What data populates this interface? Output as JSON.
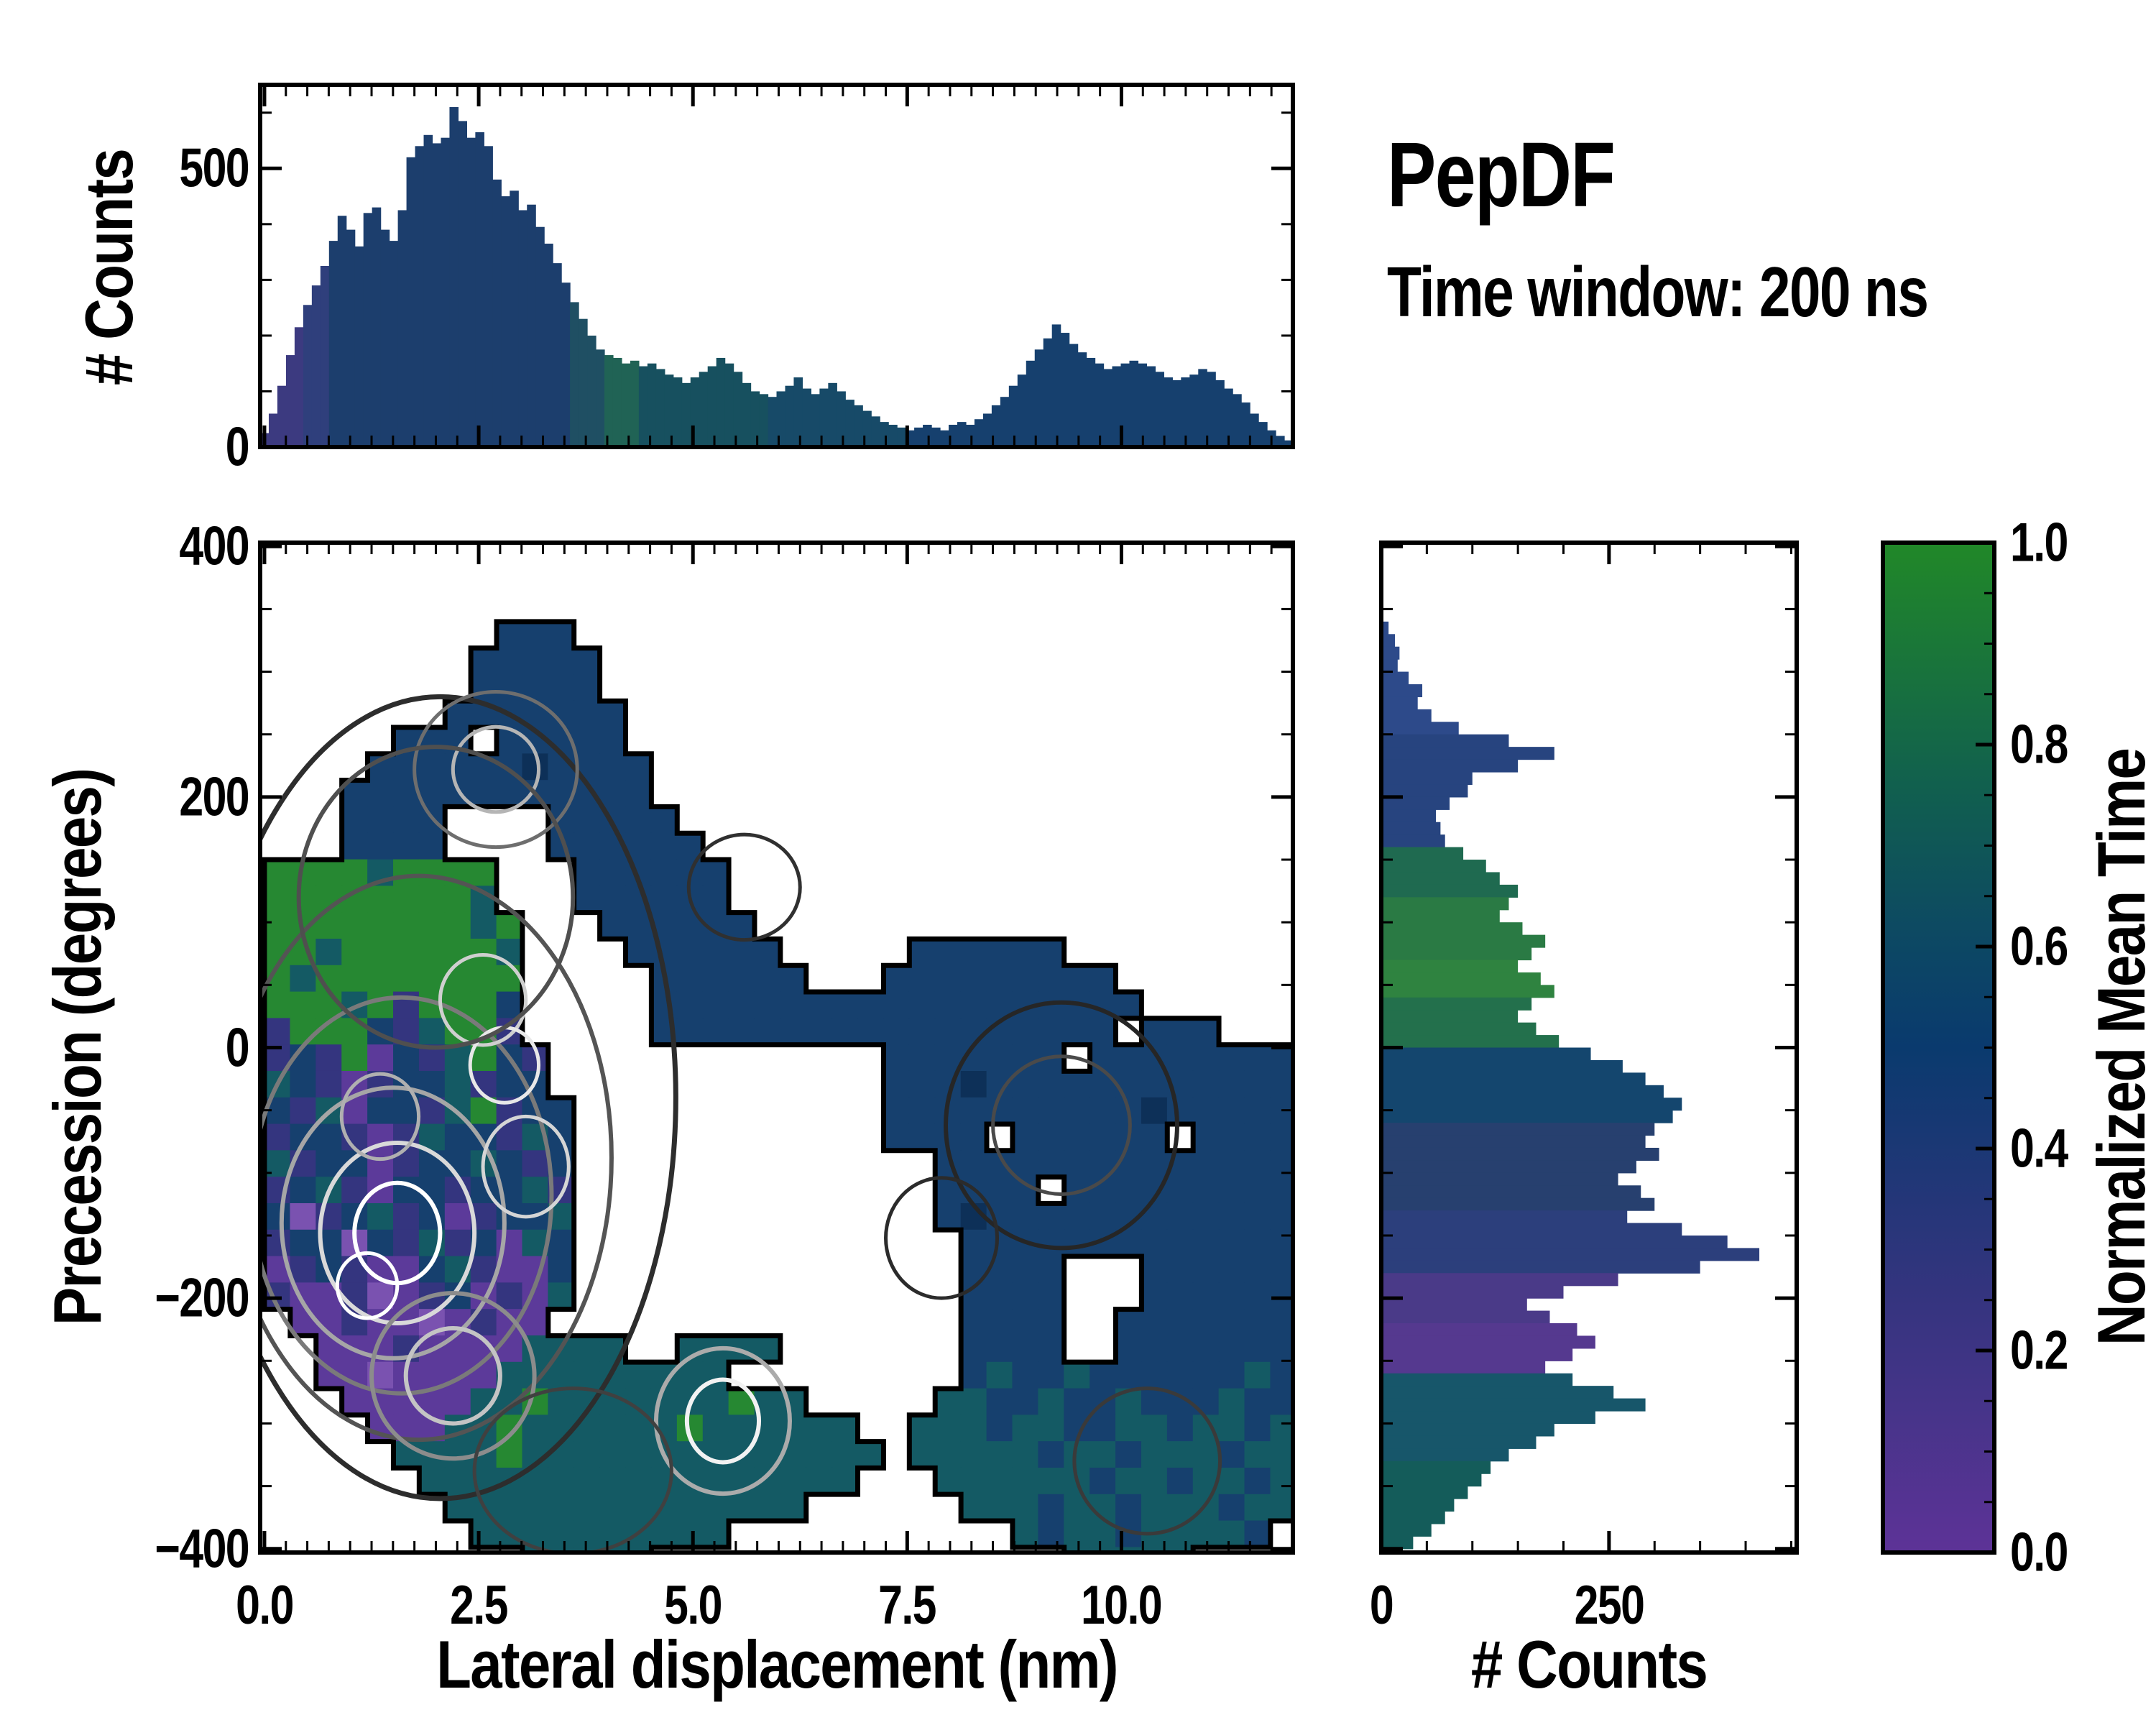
{
  "title": "PepDF",
  "subtitle": "Time window: 200 ns",
  "chart_data": [
    {
      "type": "bar",
      "name": "top_histogram",
      "ylabel": "# Counts",
      "x_start": 0,
      "bin_width": 0.1,
      "xlim": [
        0,
        12
      ],
      "ylim": [
        0,
        650
      ],
      "yticks": [
        0,
        500
      ],
      "ytick_labels": [
        "0",
        "500"
      ],
      "minor_yticks": [
        100,
        200,
        300,
        400,
        600
      ],
      "minor_xstep": 0.25,
      "values": [
        25,
        60,
        110,
        165,
        215,
        255,
        290,
        325,
        370,
        415,
        390,
        360,
        420,
        430,
        390,
        370,
        425,
        520,
        540,
        560,
        545,
        555,
        610,
        585,
        555,
        565,
        540,
        480,
        450,
        460,
        425,
        435,
        395,
        365,
        330,
        295,
        260,
        230,
        200,
        175,
        165,
        160,
        150,
        155,
        145,
        150,
        140,
        130,
        125,
        115,
        125,
        135,
        145,
        160,
        150,
        135,
        115,
        100,
        95,
        90,
        100,
        110,
        125,
        105,
        95,
        105,
        115,
        100,
        85,
        75,
        65,
        55,
        45,
        40,
        35,
        30,
        35,
        40,
        35,
        30,
        40,
        45,
        40,
        50,
        60,
        75,
        90,
        110,
        130,
        155,
        175,
        195,
        220,
        205,
        185,
        170,
        160,
        150,
        140,
        145,
        150,
        155,
        150,
        145,
        135,
        125,
        120,
        125,
        130,
        140,
        135,
        120,
        105,
        95,
        80,
        60,
        45,
        30,
        20,
        12
      ],
      "color_stops": [
        {
          "to": 0.45,
          "color": "#3c3a80"
        },
        {
          "to": 0.85,
          "color": "#2f3f7c"
        },
        {
          "to": 3.6,
          "color": "#1c3e6d"
        },
        {
          "to": 3.95,
          "color": "#1f4f63"
        },
        {
          "to": 4.4,
          "color": "#206355"
        },
        {
          "to": 5.9,
          "color": "#17505f"
        },
        {
          "to": 7.5,
          "color": "#174a68"
        },
        {
          "to": 12.1,
          "color": "#16406e"
        }
      ]
    },
    {
      "type": "heatmap",
      "name": "main_density_map",
      "xlabel": "Lateral displacement (nm)",
      "ylabel": "Precession (degrees)",
      "xlim": [
        0,
        12
      ],
      "ylim": [
        -403,
        403
      ],
      "xticks": [
        0,
        2.5,
        5,
        7.5,
        10
      ],
      "xtick_labels": [
        "0.0",
        "2.5",
        "5.0",
        "7.5",
        "10.0"
      ],
      "yticks": [
        400,
        200,
        0,
        -200,
        -400
      ],
      "ytick_labels": [
        "400",
        "200",
        "0",
        "−200",
        "−400"
      ],
      "minor_xstep": 0.25,
      "minor_ystep": 50,
      "grid": {
        "x0": 0,
        "y0": 340,
        "dx": 0.301,
        "dy": 21.11,
        "rows": [
          ".........bbb............................",
          "........bbbbb...........................",
          "........bbbbb...........................",
          ".......bbbbbbb..........................",
          ".....bbb.bbbbb..........................",
          "....bbbbbbdbbbb.........................",
          "...bbbbbbbbbbbb.........................",
          "...bbbb....bbbbb........................",
          "...bbbb....bbbbbb.......................",
          "ggggtgggg...bbbbbb......................",
          "ggggggggt...bbbbbb......................",
          "ggggggggtg...bbbbbb.....................",
          "ggtggggggt....bbbbbb.....bbbbbb.........",
          "gtgggggggg.....bbbbbb...bbbbbbbbb.......",
          "gggtgigggb.....bbbbbbbbbbbbbbbbbbb......",
          "igggbitggi.....bbbbbbbbbbbbbbbbbb.bbb...",
          "ibigpbitgbi.............bbbbbbb.bbbbbbbb",
          "tbipibbtibb.............bbbdbbbbbbbbbbbb",
          "bitpbbitgibb............bbbbbbbbbbdbbbbb",
          "ibbipitbbitb............bbbb.bbbbbb.bbbb",
          "tibbpibbtbib..............bbbbbbbbbbbbbb",
          "ibtipbbibbti..............bbbb.bbbbbbbbb",
          "bPibtibpibbt..............bdbbbbbbbbbbbb",
          "ibbPbitibptb...............bbbbbbbbbbbbb",
          "pibippbtippb...............bbbb...bbbbbb",
          "ippiPpibpipt...............bbbb...bbbbbb",
          ".ppippPpipp................bbbb..bbbbbbb",
          "..pppipppptttt..tttt.......bbbb..bbbbbbb",
          "..ppPppppttttttttt.........btbbtbbbbbbtb",
          "...pppppttgtttttttgtt.....ttbbtbbtbbbtbb",
          "....pppttgttttttgtttttt..tttbttbbttbttbt",
          ".....ttttgtttttttttttttt.tttttbttbtttbtt",
          "......ttttttttttttttttt...ttttttbttbttbt",
          ".......tttttttttttttt......tttbttbtttbtt",
          "........tttttttttt...........tbttbttttb.",
          "..........ttttt................ttttt...."
        ]
      },
      "palette": {
        "b": "#16406e",
        "B": "#1d4a7a",
        "d": "#0d3058",
        "t": "#145a64",
        "T": "#0f4a56",
        "g": "#268832",
        "G": "#1e7a3c",
        "i": "#34357f",
        "p": "#5c3a9a",
        "P": "#7a52b0"
      },
      "boundary_color": "#000000",
      "contours": [
        [
          1.55,
          -148,
          0.5,
          40,
          "#ffffff",
          6
        ],
        [
          1.55,
          -148,
          0.9,
          72,
          "#d9d9d9",
          6
        ],
        [
          1.5,
          -140,
          1.3,
          108,
          "#a6a6a6",
          6
        ],
        [
          1.6,
          -118,
          1.75,
          158,
          "#7a7a7a",
          6
        ],
        [
          1.8,
          -88,
          2.25,
          225,
          "#545454",
          6
        ],
        [
          2.05,
          -40,
          2.75,
          320,
          "#2d2d2d",
          7
        ],
        [
          2.2,
          -262,
          0.55,
          38,
          "#c4c4c4",
          6
        ],
        [
          2.2,
          -262,
          0.95,
          66,
          "#8c8c8c",
          6
        ],
        [
          5.35,
          -298,
          0.42,
          33,
          "#f2f2f2",
          6
        ],
        [
          5.35,
          -298,
          0.78,
          58,
          "#ababab",
          6
        ],
        [
          2.7,
          222,
          0.5,
          34,
          "#b5b5b5",
          5
        ],
        [
          2.7,
          222,
          0.95,
          62,
          "#6e6e6e",
          5
        ],
        [
          2.55,
          38,
          0.5,
          36,
          "#cfcfcf",
          5
        ],
        [
          2.8,
          -14,
          0.4,
          30,
          "#e8e8e8",
          5
        ],
        [
          1.35,
          -55,
          0.45,
          34,
          "#b0b0b0",
          5
        ],
        [
          3.05,
          -95,
          0.5,
          40,
          "#d5d5d5",
          5
        ],
        [
          2.0,
          120,
          1.6,
          120,
          "#4f4f4f",
          6
        ],
        [
          1.2,
          -190,
          0.35,
          26,
          "#ffffff",
          5
        ],
        [
          9.3,
          -62,
          0.8,
          55,
          "#4a4a4a",
          5
        ],
        [
          9.3,
          -62,
          1.35,
          98,
          "#262626",
          6
        ],
        [
          5.6,
          128,
          0.65,
          42,
          "#303030",
          5
        ],
        [
          10.3,
          -330,
          0.85,
          58,
          "#3a3a3a",
          5
        ],
        [
          3.6,
          -338,
          1.15,
          66,
          "#404040",
          5
        ],
        [
          7.9,
          -152,
          0.65,
          48,
          "#2b2b2b",
          5
        ]
      ]
    },
    {
      "type": "bar",
      "name": "right_histogram",
      "orientation": "horizontal",
      "xlabel": "# Counts",
      "y_start": 340,
      "bin_width": 10,
      "xlim": [
        0,
        456
      ],
      "xticks": [
        0,
        250
      ],
      "xtick_labels": [
        "0",
        "250"
      ],
      "minor_xstep": 50,
      "minor_ystep": 50,
      "values": [
        8,
        15,
        20,
        18,
        30,
        45,
        40,
        55,
        85,
        140,
        190,
        150,
        100,
        95,
        75,
        60,
        65,
        70,
        90,
        115,
        130,
        150,
        140,
        130,
        155,
        180,
        165,
        150,
        175,
        190,
        165,
        150,
        170,
        195,
        230,
        265,
        290,
        310,
        330,
        320,
        300,
        290,
        305,
        280,
        260,
        285,
        300,
        270,
        330,
        380,
        415,
        350,
        260,
        200,
        160,
        185,
        215,
        235,
        210,
        180,
        210,
        255,
        290,
        235,
        190,
        170,
        140,
        120,
        110,
        95,
        80,
        70,
        55,
        35,
        20,
        8
      ],
      "color_stops": [
        {
          "to": 255,
          "color": "#2d4a8a"
        },
        {
          "to": 165,
          "color": "#27447f"
        },
        {
          "to": 120,
          "color": "#1f6a50"
        },
        {
          "to": 75,
          "color": "#2a7a44"
        },
        {
          "to": 40,
          "color": "#2f8340"
        },
        {
          "to": 5,
          "color": "#23704c"
        },
        {
          "to": -55,
          "color": "#14466e"
        },
        {
          "to": -130,
          "color": "#27406f"
        },
        {
          "to": -175,
          "color": "#2c3f7c"
        },
        {
          "to": -215,
          "color": "#4a3a88"
        },
        {
          "to": -262,
          "color": "#55398f"
        },
        {
          "to": -330,
          "color": "#17566a"
        },
        {
          "to": -420,
          "color": "#145c5a"
        }
      ]
    },
    {
      "type": "colorbar",
      "name": "colorbar",
      "label": "Normalized Mean Time",
      "range": [
        0,
        1
      ],
      "ticks": [
        0,
        0.2,
        0.4,
        0.6,
        0.8,
        1.0
      ],
      "tick_labels": [
        "0.0",
        "0.2",
        "0.4",
        "0.6",
        "0.8",
        "1.0"
      ],
      "minor_step": 0.05,
      "gradient": [
        {
          "pos": 0,
          "color": "#5d3397"
        },
        {
          "pos": 0.25,
          "color": "#35347f"
        },
        {
          "pos": 0.5,
          "color": "#0a3a6e"
        },
        {
          "pos": 0.62,
          "color": "#0d4a62"
        },
        {
          "pos": 0.76,
          "color": "#11604e"
        },
        {
          "pos": 1,
          "color": "#218828"
        }
      ]
    }
  ]
}
